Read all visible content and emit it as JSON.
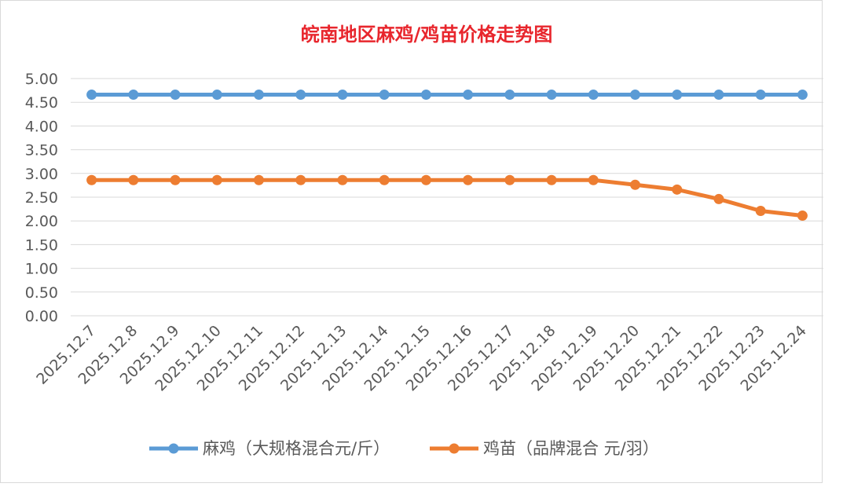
{
  "chart_data": {
    "type": "line",
    "title": "皖南地区麻鸡/鸡苗价格走势图",
    "title_color": "#e8262d",
    "categories": [
      "2025.12.7",
      "2025.12.8",
      "2025.12.9",
      "2025.12.10",
      "2025.12.11",
      "2025.12.12",
      "2025.12.13",
      "2025.12.14",
      "2025.12.15",
      "2025.12.16",
      "2025.12.17",
      "2025.12.18",
      "2025.12.19",
      "2025.12.20",
      "2025.12.21",
      "2025.12.22",
      "2025.12.23",
      "2025.12.24"
    ],
    "y_ticks": [
      "0.00",
      "0.50",
      "1.00",
      "1.50",
      "2.00",
      "2.50",
      "3.00",
      "3.50",
      "4.00",
      "4.50",
      "5.00"
    ],
    "ylim": [
      0,
      5
    ],
    "grid": true,
    "legend_position": "bottom",
    "series": [
      {
        "name": "麻鸡（大规格混合元/斤）",
        "color": "#5b9bd5",
        "values": [
          4.66,
          4.66,
          4.66,
          4.66,
          4.66,
          4.66,
          4.66,
          4.66,
          4.66,
          4.66,
          4.66,
          4.66,
          4.66,
          4.66,
          4.66,
          4.66,
          4.66,
          4.66
        ]
      },
      {
        "name": "鸡苗（品牌混合 元/羽）",
        "color": "#ed7d31",
        "values": [
          2.86,
          2.86,
          2.86,
          2.86,
          2.86,
          2.86,
          2.86,
          2.86,
          2.86,
          2.86,
          2.86,
          2.86,
          2.86,
          2.76,
          2.66,
          2.46,
          2.21,
          2.11
        ]
      }
    ]
  }
}
